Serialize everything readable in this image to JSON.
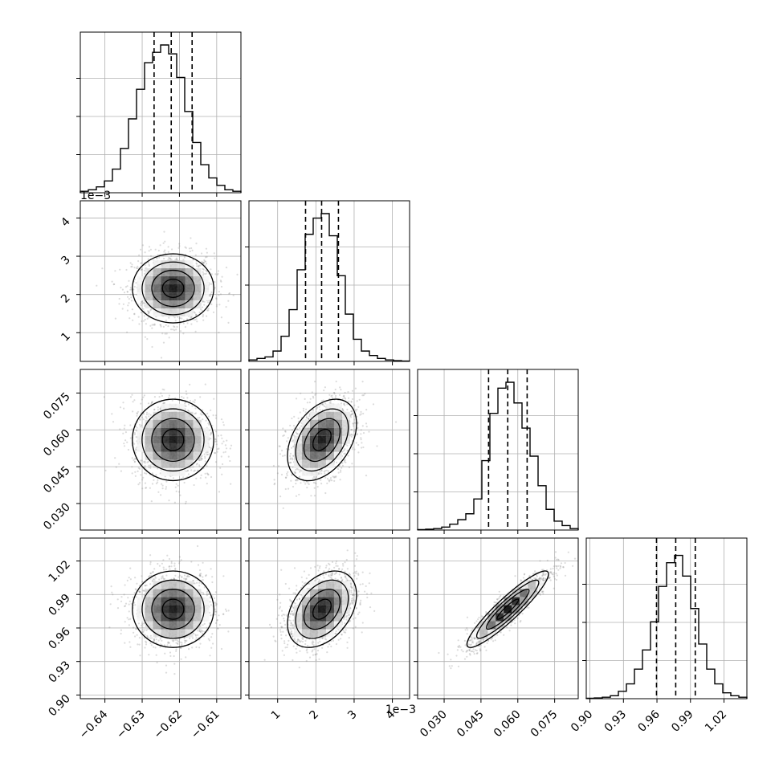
{
  "chart_data": {
    "type": "corner",
    "n_params": 4,
    "grid": true,
    "quantile_lines": "dashed",
    "params": [
      {
        "range": [
          -0.6466,
          -0.6035
        ],
        "ticks": [
          -0.64,
          -0.63,
          -0.62,
          -0.61
        ],
        "tick_labels": [
          "−0.64",
          "−0.63",
          "−0.62",
          "−0.61"
        ],
        "offset_label": "",
        "mean": -0.6217,
        "sd": 0.0052,
        "quantiles": [
          -0.6268,
          -0.6222,
          -0.6166
        ]
      },
      {
        "range": [
          0.00025,
          0.00445
        ],
        "ticks": [
          0.001,
          0.002,
          0.003,
          0.004
        ],
        "tick_labels": [
          "1",
          "2",
          "3",
          "4"
        ],
        "offset_label": "1e−3",
        "mean": 0.00216,
        "sd": 0.00043,
        "quantiles": [
          0.00173,
          0.00215,
          0.00259
        ]
      },
      {
        "range": [
          0.0192,
          0.0846
        ],
        "ticks": [
          0.03,
          0.045,
          0.06,
          0.075
        ],
        "tick_labels": [
          "0.030",
          "0.045",
          "0.060",
          "0.075"
        ],
        "offset_label": "",
        "mean": 0.0559,
        "sd": 0.0079,
        "quantiles": [
          0.0481,
          0.0559,
          0.0638
        ]
      },
      {
        "range": [
          0.8967,
          1.0405
        ],
        "ticks": [
          0.9,
          0.93,
          0.96,
          0.99,
          1.02
        ],
        "tick_labels": [
          "0.90",
          "0.93",
          "0.96",
          "0.99",
          "1.02"
        ],
        "offset_label": "",
        "mean": 0.9768,
        "sd": 0.0163,
        "quantiles": [
          0.9596,
          0.9768,
          0.9943
        ]
      }
    ],
    "histograms": [
      [
        0.01,
        0.02,
        0.04,
        0.08,
        0.16,
        0.3,
        0.5,
        0.7,
        0.88,
        0.95,
        1.0,
        0.94,
        0.78,
        0.55,
        0.34,
        0.19,
        0.1,
        0.05,
        0.02,
        0.01
      ],
      [
        0.01,
        0.02,
        0.03,
        0.07,
        0.17,
        0.35,
        0.62,
        0.86,
        0.97,
        1.0,
        0.85,
        0.58,
        0.32,
        0.15,
        0.07,
        0.04,
        0.02,
        0.01,
        0.005,
        0.002
      ],
      [
        0.003,
        0.006,
        0.01,
        0.02,
        0.04,
        0.07,
        0.11,
        0.21,
        0.47,
        0.79,
        0.96,
        1.0,
        0.86,
        0.69,
        0.5,
        0.3,
        0.14,
        0.06,
        0.03,
        0.01
      ],
      [
        0.003,
        0.005,
        0.01,
        0.02,
        0.05,
        0.1,
        0.2,
        0.33,
        0.52,
        0.76,
        0.92,
        0.97,
        0.83,
        0.61,
        0.37,
        0.2,
        0.1,
        0.04,
        0.02,
        0.01
      ]
    ],
    "correlations": {
      "1-0": 0.0,
      "2-0": 0.0,
      "2-1": 0.4,
      "3-0": 0.0,
      "3-1": 0.38,
      "3-2": 0.92
    }
  },
  "colors": {
    "axis": "#000000",
    "grid": "#b0b0b0",
    "scatter": "#808080",
    "hist": "#000000"
  }
}
